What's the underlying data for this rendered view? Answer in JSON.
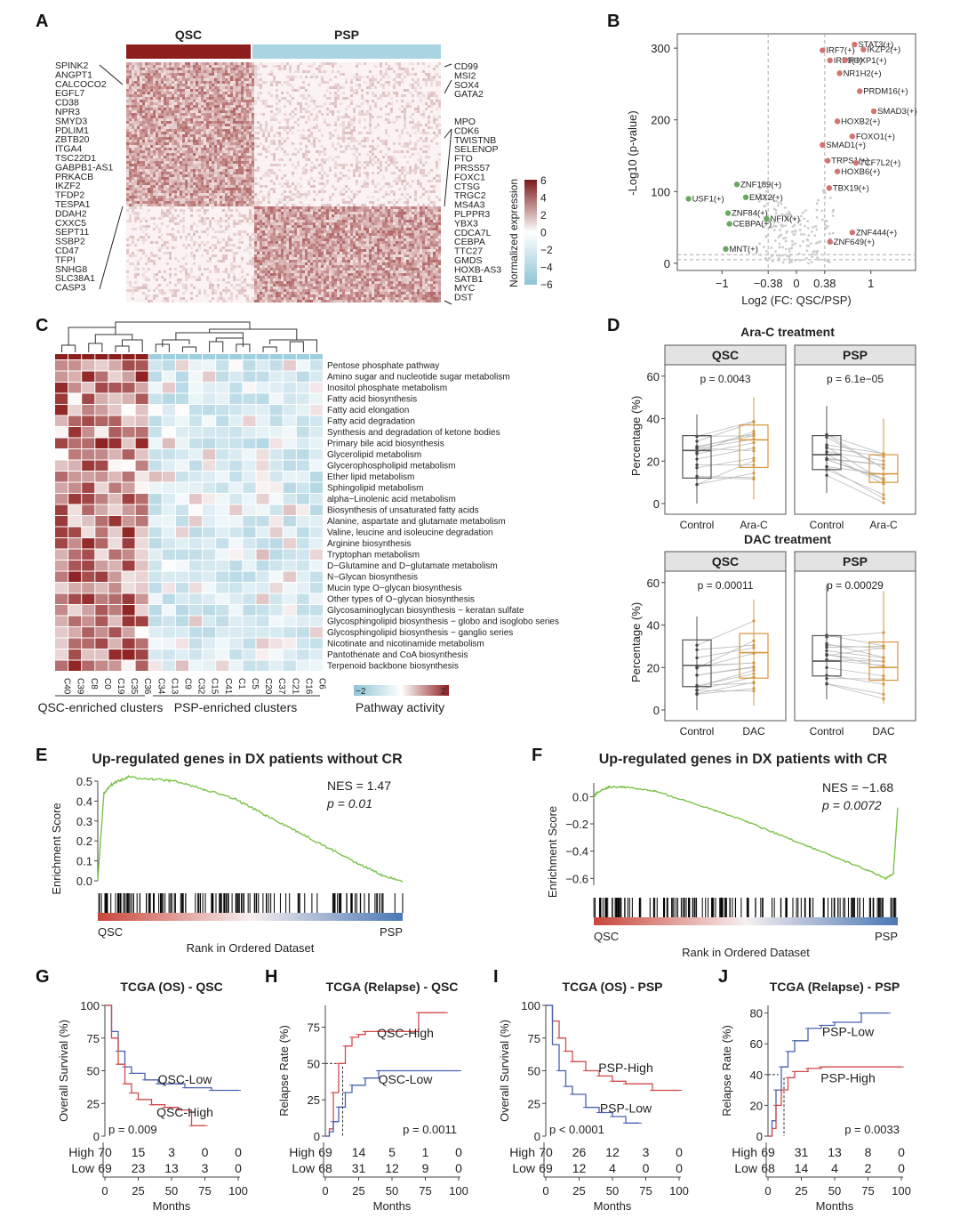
{
  "panels": {
    "A": {
      "label": "A",
      "groups": [
        "QSC",
        "PSP"
      ],
      "left_genes": [
        "SPINK2",
        "ANGPT1",
        "CALCOCO2",
        "EGFL7",
        "CD38",
        "NPR3",
        "SMYD3",
        "PDLIM1",
        "ZBTB20",
        "ITGA4",
        "TSC22D1",
        "GABPB1-AS1",
        "PRKACB",
        "IKZF2",
        "TFDP2",
        "TESPA1",
        "DDAH2",
        "CXXC5",
        "SEPT11",
        "SSBP2",
        "CD47",
        "TFPI",
        "SNHG8",
        "SLC38A1",
        "CASP3"
      ],
      "right_genes": [
        "CD99",
        "MSI2",
        "SOX4",
        "GATA2",
        "MPO",
        "CDK6",
        "TWISTNB",
        "SELENOP",
        "FTO",
        "PRSS57",
        "FOXC1",
        "CTSG",
        "TRGC2",
        "MS4A3",
        "PLPPR3",
        "YBX3",
        "CDCA7L",
        "CEBPA",
        "TTC27",
        "GMDS",
        "HOXB-AS3",
        "SATB1",
        "MYC",
        "DST"
      ],
      "legend_title": "Normalized expression",
      "legend_ticks": [
        "6",
        "4",
        "2",
        "0",
        "−2",
        "−4",
        "−6"
      ]
    },
    "B": {
      "label": "B",
      "chart_data": {
        "type": "scatter",
        "xlabel": "Log2 (FC: QSC/PSP)",
        "ylabel": "-Log10 (p-value)",
        "x_ticks": [
          "−1",
          "−0.38",
          "0",
          "0.38",
          "1"
        ],
        "y_ticks": [
          "0",
          "100",
          "200",
          "300"
        ],
        "xlim": [
          -1.6,
          1.6
        ],
        "ylim": [
          -10,
          320
        ],
        "thresholds": {
          "x": [
            -0.38,
            0.38
          ],
          "y": [
            5,
            12
          ]
        },
        "up_points": [
          {
            "label": "STAT3(+)",
            "x": 0.78,
            "y": 305
          },
          {
            "label": "IKZF2(+)",
            "x": 0.9,
            "y": 298
          },
          {
            "label": "IRF7(+)",
            "x": 0.35,
            "y": 297
          },
          {
            "label": "IRF9(+)",
            "x": 0.45,
            "y": 283
          },
          {
            "label": "FOXP1(+)",
            "x": 0.65,
            "y": 283
          },
          {
            "label": "NR1H2(+)",
            "x": 0.58,
            "y": 265
          },
          {
            "label": "PRDM16(+)",
            "x": 0.85,
            "y": 240
          },
          {
            "label": "SMAD3(+)",
            "x": 1.04,
            "y": 212
          },
          {
            "label": "HOXB2(+)",
            "x": 0.55,
            "y": 198
          },
          {
            "label": "FOXO1(+)",
            "x": 0.75,
            "y": 177
          },
          {
            "label": "SMAD1(+)",
            "x": 0.35,
            "y": 165
          },
          {
            "label": "TRPS1(+)",
            "x": 0.42,
            "y": 143
          },
          {
            "label": "TCF7L2(+)",
            "x": 0.8,
            "y": 140
          },
          {
            "label": "HOXB6(+)",
            "x": 0.55,
            "y": 128
          },
          {
            "label": "TBX19(+)",
            "x": 0.44,
            "y": 105
          },
          {
            "label": "ZNF444(+)",
            "x": 0.75,
            "y": 43
          },
          {
            "label": "ZNF649(+)",
            "x": 0.45,
            "y": 30
          }
        ],
        "down_points": [
          {
            "label": "ZNF189(+)",
            "x": -0.8,
            "y": 110
          },
          {
            "label": "USF1(+)",
            "x": -1.45,
            "y": 90
          },
          {
            "label": "EMX2(+)",
            "x": -0.68,
            "y": 92
          },
          {
            "label": "ZNF84(+)",
            "x": -0.92,
            "y": 70
          },
          {
            "label": "NFIX(+)",
            "x": -0.4,
            "y": 62
          },
          {
            "label": "CEBPA(+)",
            "x": -0.9,
            "y": 55
          },
          {
            "label": "MNT(+)",
            "x": -0.95,
            "y": 20
          }
        ]
      }
    },
    "C": {
      "label": "C",
      "pathways": [
        "Pentose phosphate pathway",
        "Amino sugar and nucleotide sugar metabolism",
        "Inositol phosphate metabolism",
        "Fatty acid biosynthesis",
        "Fatty acid elongation",
        "Fatty acid degradation",
        "Synthesis and degradation of ketone bodies",
        "Primary bile acid biosynthesis",
        "Glycerolipid metabolism",
        "Glycerophospholipid metabolism",
        "Ether lipid metabolism",
        "Sphingolipid metabolism",
        "alpha−Linolenic acid metabolism",
        "Biosynthesis of unsaturated fatty acids",
        "Alanine, aspartate and glutamate metabolism",
        "Valine, leucine and isoleucine degradation",
        "Arginine biosynthesis",
        "Tryptophan metabolism",
        "D−Glutamine and D−glutamate metabolism",
        "N−Glycan biosynthesis",
        "Mucin type O−glycan biosynthesis",
        "Other types of O−glycan biosynthesis",
        "Glycosaminoglycan biosynthesis − keratan sulfate",
        "Glycosphingolipid biosynthesis − globo and isoglobo series",
        "Glycosphingolipid biosynthesis − ganglio series",
        "Nicotinate and nicotinamide metabolism",
        "Pantothenate and CoA biosynthesis",
        "Terpenoid backbone biosynthesis"
      ],
      "qsc_clusters": [
        "C40",
        "C39",
        "C8",
        "C0",
        "C19",
        "C35",
        "C36"
      ],
      "psp_clusters": [
        "C34",
        "C13",
        "C9",
        "C32",
        "C15",
        "C41",
        "C1",
        "C5",
        "C20",
        "C37",
        "C21",
        "C16",
        "C6"
      ],
      "group_labels": {
        "qsc": "QSC-enriched clusters",
        "psp": "PSP-enriched clusters"
      },
      "legend": {
        "title": "Pathway activity",
        "min": "−2",
        "max": "2"
      }
    },
    "D": {
      "label": "D",
      "chart_data": [
        {
          "type": "box",
          "treatment": "Ara-C treatment",
          "group": "QSC",
          "p": "p = 0.0043",
          "categories": [
            "Control",
            "Ara-C"
          ],
          "median": [
            25,
            30
          ],
          "q1": [
            12,
            17
          ],
          "q3": [
            32,
            37
          ],
          "min": [
            0,
            2
          ],
          "max": [
            42,
            50
          ]
        },
        {
          "type": "box",
          "treatment": "Ara-C treatment",
          "group": "PSP",
          "p": "p = 6.1e−05",
          "categories": [
            "Control",
            "Ara-C"
          ],
          "median": [
            23,
            14
          ],
          "q1": [
            16,
            10
          ],
          "q3": [
            32,
            23
          ],
          "min": [
            5,
            2
          ],
          "max": [
            46,
            40
          ]
        },
        {
          "type": "box",
          "treatment": "DAC treatment",
          "group": "QSC",
          "p": "p = 0.00011",
          "categories": [
            "Control",
            "DAC"
          ],
          "median": [
            21,
            27
          ],
          "q1": [
            11,
            15
          ],
          "q3": [
            33,
            36
          ],
          "min": [
            0,
            2
          ],
          "max": [
            44,
            52
          ]
        },
        {
          "type": "box",
          "treatment": "DAC treatment",
          "group": "PSP",
          "p": "p = 0.00029",
          "categories": [
            "Control",
            "DAC"
          ],
          "median": [
            23,
            20
          ],
          "q1": [
            16,
            14
          ],
          "q3": [
            35,
            32
          ],
          "min": [
            5,
            3
          ],
          "max": [
            59,
            56
          ]
        }
      ],
      "ylabel": "Percentage (%)",
      "y_ticks": [
        "0",
        "20",
        "40",
        "60"
      ],
      "titles": [
        "Ara-C treatment",
        "DAC treatment"
      ]
    },
    "E": {
      "label": "E",
      "title": "Up-regulated genes in DX patients without CR",
      "nes": "NES = 1.47",
      "p": "p = 0.01",
      "ylabel": "Enrichment Score",
      "y_ticks": [
        "0.0",
        "0.1",
        "0.2",
        "0.3",
        "0.4",
        "0.5"
      ],
      "xlabel": "Rank in Ordered Dataset",
      "left": "QSC",
      "right": "PSP",
      "chart_data": {
        "type": "line",
        "x": [
          0,
          0.02,
          0.05,
          0.1,
          0.18,
          0.25,
          0.35,
          0.45,
          0.55,
          0.65,
          0.75,
          0.85,
          0.93,
          1.0
        ],
        "y": [
          0,
          0.44,
          0.49,
          0.52,
          0.51,
          0.5,
          0.46,
          0.41,
          0.33,
          0.25,
          0.17,
          0.09,
          0.03,
          0.0
        ]
      }
    },
    "F": {
      "label": "F",
      "title": "Up-regulated genes in DX patients with CR",
      "nes": "NES = −1.68",
      "p": "p = 0.0072",
      "ylabel": "Enrichment Score",
      "y_ticks": [
        "0.0",
        "−0.2",
        "−0.4",
        "−0.6"
      ],
      "xlabel": "Rank in Ordered Dataset",
      "left": "QSC",
      "right": "PSP",
      "chart_data": {
        "type": "line",
        "x": [
          0,
          0.01,
          0.05,
          0.1,
          0.2,
          0.3,
          0.4,
          0.5,
          0.6,
          0.7,
          0.8,
          0.9,
          0.96,
          0.985,
          1.0
        ],
        "y": [
          0,
          0.03,
          0.07,
          0.07,
          0.04,
          -0.03,
          -0.1,
          -0.18,
          -0.27,
          -0.36,
          -0.45,
          -0.54,
          -0.6,
          -0.57,
          -0.08
        ]
      }
    },
    "G": {
      "label": "G",
      "title": "TCGA (OS) - QSC",
      "ylabel": "Overall Survival (%)",
      "xlabel": "Months",
      "p": "p = 0.009",
      "y_ticks": [
        "0",
        "25",
        "50",
        "75",
        "100"
      ],
      "x_ticks": [
        "0",
        "25",
        "50",
        "75",
        "100"
      ],
      "risk": {
        "High": [
          "70",
          "15",
          "3",
          "0",
          "0"
        ],
        "Low": [
          "69",
          "23",
          "13",
          "3",
          "0"
        ]
      },
      "chart_data": {
        "type": "km",
        "series": [
          {
            "name": "QSC-Low",
            "color": "#4a62b0",
            "x": [
              0,
              5,
              10,
              15,
              20,
              30,
              40,
              60,
              80,
              100
            ],
            "y": [
              100,
              80,
              65,
              53,
              48,
              43,
              40,
              37,
              35,
              35
            ]
          },
          {
            "name": "QSC-High",
            "color": "#d04a4a",
            "x": [
              0,
              5,
              10,
              15,
              20,
              25,
              35,
              45,
              55,
              65,
              75
            ],
            "y": [
              100,
              75,
              55,
              40,
              33,
              28,
              24,
              22,
              20,
              8,
              8
            ]
          }
        ]
      }
    },
    "H": {
      "label": "H",
      "title": "TCGA (Relapse) - QSC",
      "ylabel": "Relapse Rate (%)",
      "xlabel": "Months",
      "p": "p = 0.0011",
      "y_ticks": [
        "0",
        "25",
        "50",
        "75"
      ],
      "x_ticks": [
        "0",
        "25",
        "50",
        "75",
        "100"
      ],
      "risk": {
        "High": [
          "69",
          "14",
          "5",
          "1",
          "0"
        ],
        "Low": [
          "68",
          "31",
          "12",
          "9",
          "0"
        ]
      },
      "chart_data": {
        "type": "km",
        "series": [
          {
            "name": "QSC-High",
            "color": "#d04a4a",
            "x": [
              0,
              3,
              6,
              10,
              15,
              20,
              25,
              30,
              40,
              60,
              70,
              75,
              90
            ],
            "y": [
              0,
              5,
              30,
              50,
              62,
              68,
              70,
              72,
              72,
              72,
              85,
              85,
              85
            ]
          },
          {
            "name": "QSC-Low",
            "color": "#4a62b0",
            "x": [
              0,
              3,
              6,
              10,
              15,
              20,
              30,
              40,
              50,
              60,
              100
            ],
            "y": [
              0,
              3,
              10,
              20,
              30,
              35,
              40,
              45,
              45,
              45,
              45
            ]
          }
        ]
      }
    },
    "I": {
      "label": "I",
      "title": "TCGA (OS) - PSP",
      "ylabel": "Overall Survival (%)",
      "xlabel": "Months",
      "p": "p < 0.0001",
      "y_ticks": [
        "0",
        "25",
        "50",
        "75",
        "100"
      ],
      "x_ticks": [
        "0",
        "25",
        "50",
        "75",
        "100"
      ],
      "risk": {
        "High": [
          "70",
          "26",
          "12",
          "3",
          "0"
        ],
        "Low": [
          "69",
          "12",
          "4",
          "0",
          "0"
        ]
      },
      "chart_data": {
        "type": "km",
        "series": [
          {
            "name": "PSP-High",
            "color": "#d04a4a",
            "x": [
              0,
              5,
              10,
              15,
              20,
              30,
              40,
              50,
              60,
              80,
              100
            ],
            "y": [
              100,
              88,
              75,
              65,
              57,
              50,
              46,
              42,
              40,
              35,
              35
            ]
          },
          {
            "name": "PSP-Low",
            "color": "#4a62b0",
            "x": [
              0,
              5,
              10,
              15,
              20,
              30,
              40,
              50,
              60,
              70
            ],
            "y": [
              100,
              70,
              50,
              38,
              32,
              22,
              18,
              15,
              10,
              10
            ]
          }
        ]
      }
    },
    "J": {
      "label": "J",
      "title": "TCGA (Relapse) - PSP",
      "ylabel": "Relapse Rate (%)",
      "xlabel": "Months",
      "p": "p = 0.0033",
      "y_ticks": [
        "0",
        "20",
        "40",
        "60",
        "80"
      ],
      "x_ticks": [
        "0",
        "25",
        "50",
        "75",
        "100"
      ],
      "risk": {
        "High": [
          "69",
          "31",
          "13",
          "8",
          "0"
        ],
        "Low": [
          "68",
          "14",
          "4",
          "2",
          "0"
        ]
      },
      "chart_data": {
        "type": "km",
        "series": [
          {
            "name": "PSP-Low",
            "color": "#4a62b0",
            "x": [
              0,
              3,
              6,
              10,
              15,
              20,
              30,
              40,
              50,
              70,
              90
            ],
            "y": [
              0,
              10,
              30,
              45,
              55,
              62,
              70,
              72,
              74,
              80,
              80
            ]
          },
          {
            "name": "PSP-High",
            "color": "#d04a4a",
            "x": [
              0,
              3,
              6,
              10,
              15,
              20,
              30,
              40,
              60,
              100
            ],
            "y": [
              0,
              5,
              20,
              30,
              38,
              42,
              44,
              45,
              45,
              45
            ]
          }
        ]
      }
    }
  },
  "strings": {
    "risk_high": "High",
    "risk_low": "Low"
  }
}
